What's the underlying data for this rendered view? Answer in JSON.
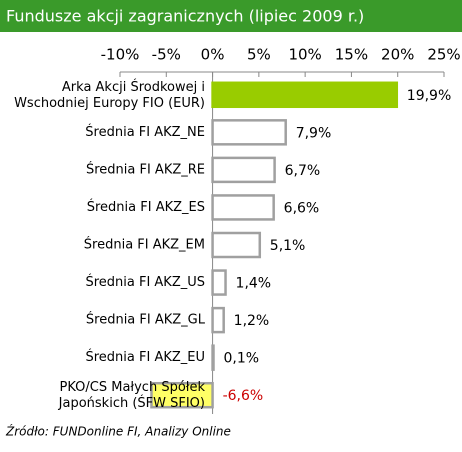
{
  "chart_data": {
    "type": "bar",
    "orientation": "horizontal",
    "title": "Fundusze akcji zagranicznych (lipiec 2009 r.)",
    "source": "Źródło: FUNDonline FI, Analizy Online",
    "categories": [
      "Arka Akcji Środkowej i\nWschodniej Europy FIO (EUR)",
      "Średnia FI AKZ_NE",
      "Średnia FI AKZ_RE",
      "Średnia FI AKZ_ES",
      "Średnia FI AKZ_EM",
      "Średnia FI AKZ_US",
      "Średnia FI AKZ_GL",
      "Średnia FI AKZ_EU",
      "PKO/CS Małych Spółek\nJapońskich (ŚFW SFIO)"
    ],
    "values": [
      19.9,
      7.9,
      6.7,
      6.6,
      5.1,
      1.4,
      1.2,
      0.1,
      -6.6
    ],
    "value_labels": [
      "19,9%",
      "7,9%",
      "6,7%",
      "6,6%",
      "5,1%",
      "1,4%",
      "1,2%",
      "0,1%",
      "-6,6%"
    ],
    "colors": [
      "#99cc00",
      "#ffffff",
      "#ffffff",
      "#ffffff",
      "#ffffff",
      "#ffffff",
      "#ffffff",
      "#ffffff",
      "#ffff66"
    ],
    "label_colors": [
      "#000000",
      "#000000",
      "#000000",
      "#000000",
      "#000000",
      "#000000",
      "#000000",
      "#000000",
      "#cc0000"
    ],
    "xlim": [
      -10,
      25
    ],
    "xticks": [
      {
        "value": -10,
        "label": "-10%"
      },
      {
        "value": -5,
        "label": "-5%"
      },
      {
        "value": 0,
        "label": "0%"
      },
      {
        "value": 5,
        "label": "5%"
      },
      {
        "value": 10,
        "label": "10%"
      },
      {
        "value": 15,
        "label": "15%"
      },
      {
        "value": 20,
        "label": "20%"
      },
      {
        "value": 25,
        "label": "25%"
      }
    ]
  }
}
